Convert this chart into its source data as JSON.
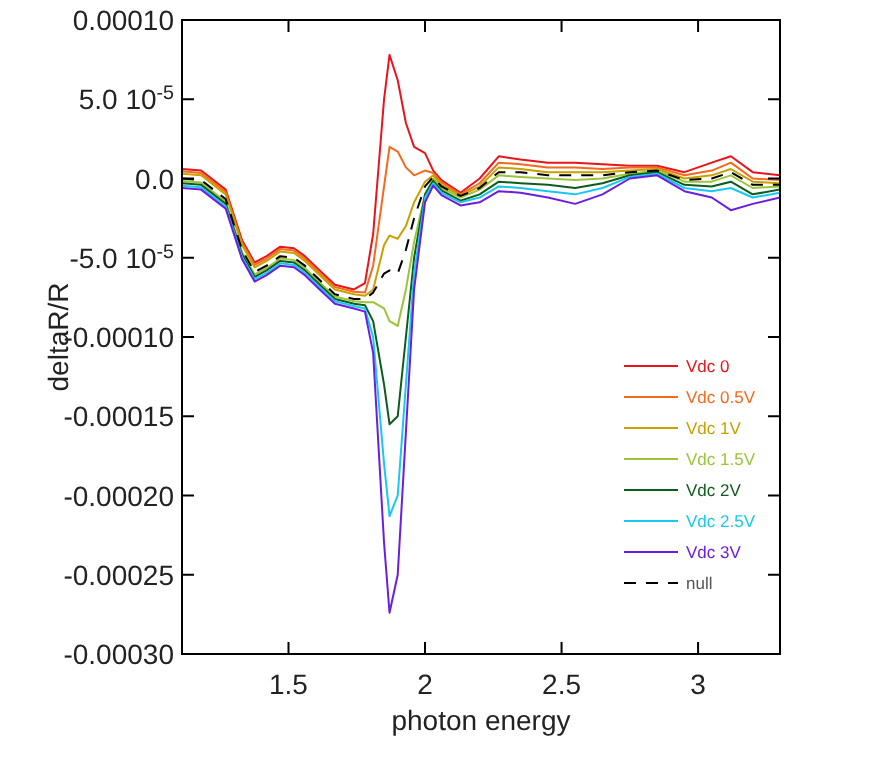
{
  "chart_data": {
    "type": "line",
    "xlabel": "photon energy",
    "ylabel": "deltaR/R",
    "xlim": [
      1.11,
      3.3
    ],
    "ylim": [
      -0.0003,
      0.0001
    ],
    "xticks": [
      1.5,
      2,
      2.5,
      3
    ],
    "yticks": [
      {
        "value": 0.0001,
        "label": "0.00010"
      },
      {
        "value": 5e-05,
        "label": "5.0 10$^{-5}$"
      },
      {
        "value": 0,
        "label": "0.0"
      },
      {
        "value": -5e-05,
        "label": "-5.0 10$^{-5}$"
      },
      {
        "value": -0.0001,
        "label": "-0.00010"
      },
      {
        "value": -0.00015,
        "label": "-0.00015"
      },
      {
        "value": -0.0002,
        "label": "-0.00020"
      },
      {
        "value": -0.00025,
        "label": "-0.00025"
      },
      {
        "value": -0.0003,
        "label": "-0.00030"
      }
    ],
    "grid": false,
    "legend": "bottom right",
    "marker": "none",
    "line_style": "solid",
    "x": [
      1.11,
      1.18,
      1.27,
      1.33,
      1.376,
      1.42,
      1.47,
      1.52,
      1.56,
      1.62,
      1.67,
      1.74,
      1.78,
      1.81,
      1.85,
      1.87,
      1.9,
      1.93,
      1.96,
      2.0,
      2.03,
      2.06,
      2.13,
      2.2,
      2.27,
      2.35,
      2.45,
      2.55,
      2.65,
      2.75,
      2.85,
      2.95,
      3.05,
      3.12,
      3.2,
      3.3
    ],
    "series": [
      {
        "name": "Vdc 0",
        "color": "#e8141c",
        "values": [
          6e-06,
          5e-06,
          -7e-06,
          -3.9e-05,
          -5.3e-05,
          -4.9e-05,
          -4.3e-05,
          -4.4e-05,
          -4.9e-05,
          -5.9e-05,
          -6.7e-05,
          -7e-05,
          -6.6e-05,
          -3.5e-05,
          5e-05,
          7.8e-05,
          6.2e-05,
          3.5e-05,
          2e-05,
          1.6e-05,
          5e-06,
          -1e-06,
          -9e-06,
          0,
          1.4e-05,
          1.2e-05,
          1e-05,
          1e-05,
          9e-06,
          8e-06,
          8e-06,
          4e-06,
          1e-05,
          1.4e-05,
          4e-06,
          2e-06
        ]
      },
      {
        "name": "Vdc 0.5V",
        "color": "#f26b1d",
        "values": [
          4.5e-06,
          3.5e-06,
          -8.5e-06,
          -4.05e-05,
          -5.45e-05,
          -5.05e-05,
          -4.45e-05,
          -4.55e-05,
          -5.05e-05,
          -6.05e-05,
          -6.85e-05,
          -7.15e-05,
          -7.2e-05,
          -5.5e-05,
          -5e-06,
          2e-05,
          1.7e-05,
          7e-06,
          2e-06,
          5e-06,
          3.5e-06,
          -2.5e-06,
          -1e-05,
          -3e-06,
          1e-05,
          9e-06,
          7e-06,
          7e-06,
          6e-06,
          7e-06,
          7e-06,
          2e-06,
          5e-06,
          1e-05,
          0,
          -1e-06
        ]
      },
      {
        "name": "Vdc 1V",
        "color": "#c8a000",
        "values": [
          3e-06,
          2e-06,
          -1e-05,
          -4.2e-05,
          -5.6e-05,
          -5.2e-05,
          -4.6e-05,
          -4.7e-05,
          -5.2e-05,
          -6.2e-05,
          -7e-05,
          -7.3e-05,
          -7.4e-05,
          -7e-05,
          -4.2e-05,
          -3.6e-05,
          -3.8e-05,
          -3e-05,
          -1.5e-05,
          -2e-06,
          2e-06,
          -4e-06,
          -1.1e-05,
          -5e-06,
          7e-06,
          6e-06,
          4e-06,
          4e-06,
          4e-06,
          5e-06,
          6e-06,
          0,
          2e-06,
          6e-06,
          -2e-06,
          -3e-06
        ]
      },
      {
        "name": "Vdc 1.5V",
        "color": "#9dc33a",
        "values": [
          -1.5e-06,
          -2.5e-06,
          -1.45e-05,
          -4.65e-05,
          -6.05e-05,
          -5.65e-05,
          -5.05e-05,
          -5.15e-05,
          -5.65e-05,
          -6.65e-05,
          -7.45e-05,
          -7.75e-05,
          -7.8e-05,
          -7.8e-05,
          -8.2e-05,
          -9e-05,
          -9.3e-05,
          -7e-05,
          -4e-05,
          -1e-05,
          0,
          -6e-06,
          -1.2e-05,
          -7e-06,
          2e-06,
          1e-06,
          0,
          -1e-06,
          0,
          3e-06,
          5e-06,
          -2e-06,
          -2e-06,
          2e-06,
          -6e-06,
          -5e-06
        ]
      },
      {
        "name": "Vdc 2V",
        "color": "#0e5c1c",
        "values": [
          -3e-06,
          -4e-06,
          -1.6e-05,
          -4.8e-05,
          -6.2e-05,
          -5.8e-05,
          -5.2e-05,
          -5.3e-05,
          -5.8e-05,
          -6.8e-05,
          -7.6e-05,
          -7.9e-05,
          -8e-05,
          -9e-05,
          -0.00013,
          -0.000155,
          -0.00015,
          -0.0001,
          -5e-05,
          -1e-05,
          -1.5e-06,
          -7.5e-06,
          -1.4e-05,
          -1e-05,
          -2e-06,
          -3e-06,
          -4e-06,
          -6e-06,
          -3e-06,
          2e-06,
          4e-06,
          -4e-06,
          -5e-06,
          -2e-06,
          -1e-05,
          -7e-06
        ]
      },
      {
        "name": "Vdc 2.5V",
        "color": "#18c8f0",
        "values": [
          -4.5e-06,
          -5.5e-06,
          -1.75e-05,
          -4.95e-05,
          -6.35e-05,
          -5.95e-05,
          -5.35e-05,
          -5.45e-05,
          -5.95e-05,
          -6.95e-05,
          -7.75e-05,
          -8.05e-05,
          -8.2e-05,
          -0.0001,
          -0.00018,
          -0.000213,
          -0.0002,
          -0.00013,
          -6e-05,
          -1.2e-05,
          -3e-06,
          -9e-06,
          -1.5e-05,
          -1.2e-05,
          -5e-06,
          -6e-06,
          -8e-06,
          -1e-05,
          -6e-06,
          1e-06,
          3e-06,
          -6e-06,
          -8e-06,
          -6e-06,
          -1.2e-05,
          -9e-06
        ]
      },
      {
        "name": "Vdc 3V",
        "color": "#6a1ee0",
        "values": [
          -6e-06,
          -7e-06,
          -1.9e-05,
          -5.1e-05,
          -6.5e-05,
          -6.1e-05,
          -5.5e-05,
          -5.6e-05,
          -6.1e-05,
          -7.1e-05,
          -7.9e-05,
          -8.2e-05,
          -8.4e-05,
          -0.00011,
          -0.00023,
          -0.000274,
          -0.00025,
          -0.00016,
          -7e-05,
          -1.5e-05,
          -4.5e-06,
          -1.05e-05,
          -1.7e-05,
          -1.5e-05,
          -8e-06,
          -9e-06,
          -1.2e-05,
          -1.6e-05,
          -1e-05,
          0,
          2e-06,
          -8e-06,
          -1.2e-05,
          -2e-05,
          -1.6e-05,
          -1.2e-05
        ]
      },
      {
        "name": "null",
        "color": "#000000",
        "line_style": "dashed",
        "values": [
          0,
          -1e-06,
          -1.3e-05,
          -4.5e-05,
          -5.9e-05,
          -5.5e-05,
          -4.9e-05,
          -5e-05,
          -5.5e-05,
          -6.5e-05,
          -7.3e-05,
          -7.6e-05,
          -7.6e-05,
          -7.2e-05,
          -6e-05,
          -5.8e-05,
          -6e-05,
          -4.5e-05,
          -2.5e-05,
          -5e-06,
          1e-06,
          -5e-06,
          -1.1e-05,
          -6e-06,
          4e-06,
          4e-06,
          2e-06,
          2e-06,
          2e-06,
          4e-06,
          5e-06,
          -1e-06,
          0,
          4e-06,
          -4e-06,
          -4e-06
        ]
      }
    ]
  }
}
